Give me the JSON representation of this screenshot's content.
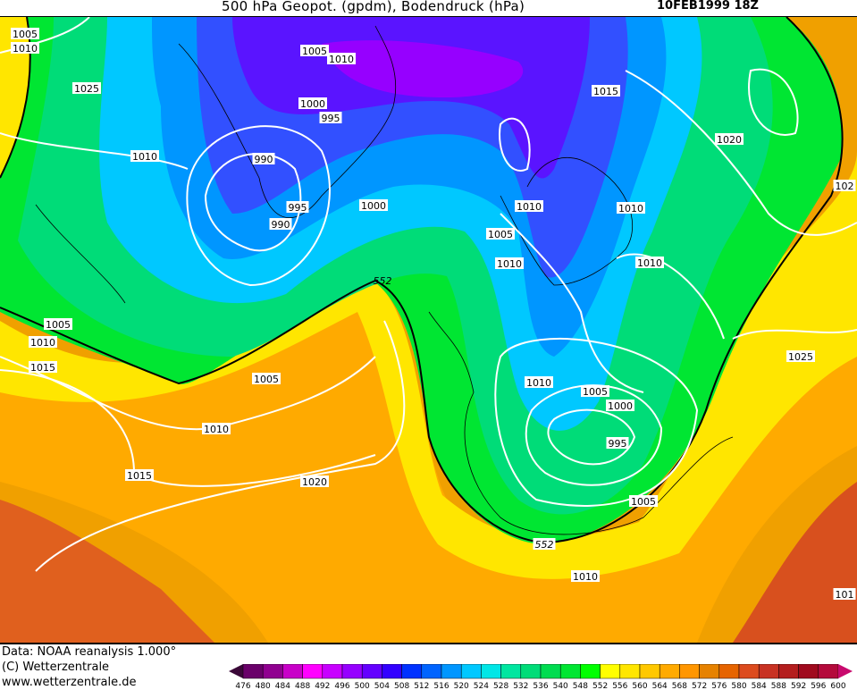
{
  "header": {
    "title": "500 hPa Geopot. (gpdm), Bodendruck (hPa)",
    "datetime": "10FEB1999 18Z"
  },
  "map": {
    "contour_552_label": "552",
    "isobar_labels": [
      "1005",
      "1010",
      "1025",
      "1010",
      "1005",
      "1010",
      "1000",
      "995",
      "990",
      "995",
      "990",
      "1000",
      "1015",
      "1020",
      "1010",
      "1005",
      "1010",
      "1010",
      "1010",
      "102",
      "1005",
      "1010",
      "1015",
      "1005",
      "1010",
      "1005",
      "1000",
      "995",
      "1025",
      "1010",
      "1015",
      "1020",
      "1005",
      "1010",
      "101",
      "552"
    ],
    "colors": {
      "land_outline": "#000000",
      "isobar": "#ffffff",
      "contour_552": "#000000"
    }
  },
  "footer": {
    "data_source": "Data: NOAA reanalysis 1.000°",
    "copyright": "(C) Wetterzentrale",
    "website": "www.wetterzentrale.de"
  },
  "legend": {
    "ticks": [
      "476",
      "480",
      "484",
      "488",
      "492",
      "496",
      "500",
      "504",
      "508",
      "512",
      "516",
      "520",
      "524",
      "528",
      "532",
      "536",
      "540",
      "548",
      "552",
      "556",
      "560",
      "564",
      "568",
      "572",
      "576",
      "580",
      "584",
      "588",
      "592",
      "596",
      "600"
    ],
    "colors": [
      "#3a0838",
      "#6a006a",
      "#900090",
      "#c800c8",
      "#ff00ff",
      "#c800ff",
      "#9600ff",
      "#6400ff",
      "#3200ff",
      "#0032ff",
      "#0064ff",
      "#0096ff",
      "#00c8ff",
      "#00e6e6",
      "#00e6a0",
      "#00dc78",
      "#00dc50",
      "#00e632",
      "#00ff00",
      "#ffff00",
      "#ffe600",
      "#ffc800",
      "#ffaa00",
      "#ff9600",
      "#e68200",
      "#e66400",
      "#dc4b1e",
      "#c83223",
      "#b41e1e",
      "#a00a1e",
      "#b40a3c",
      "#c80a6e"
    ]
  }
}
